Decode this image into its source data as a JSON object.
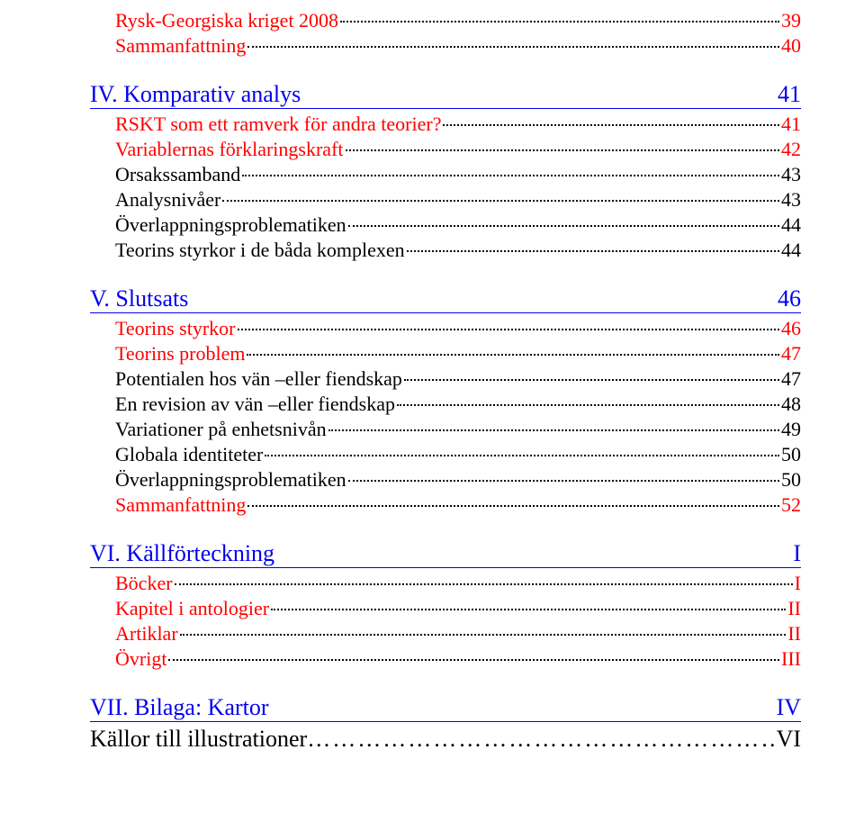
{
  "colors": {
    "background": "#ffffff",
    "link_blue": "#0000ee",
    "link_red": "#ff0000",
    "text": "#000000",
    "dot": "#000000"
  },
  "typography": {
    "font_family": "Times New Roman",
    "entry_fontsize_pt": 17,
    "heading_fontsize_pt": 20
  },
  "pre_entries": [
    {
      "label": "Rysk-Georgiska kriget 2008",
      "page": "39",
      "style": "link-red",
      "indent": 1
    },
    {
      "label": "Sammanfattning",
      "page": "40",
      "style": "link-red",
      "indent": 1
    }
  ],
  "sections": [
    {
      "title": "IV. Komparativ analys",
      "page": "41",
      "entries": [
        {
          "label": "RSKT som ett ramverk för andra teorier?",
          "page": "41",
          "style": "link-red",
          "indent": 1
        },
        {
          "label": "Variablernas förklaringskraft",
          "page": "42",
          "style": "link-red",
          "indent": 1
        },
        {
          "label": "Orsakssamband",
          "page": "43",
          "style": "plain",
          "indent": 1
        },
        {
          "label": "Analysnivåer",
          "page": "43",
          "style": "plain",
          "indent": 1
        },
        {
          "label": "Överlappningsproblematiken",
          "page": "44",
          "style": "plain",
          "indent": 1
        },
        {
          "label": "Teorins styrkor i de båda komplexen",
          "page": "44",
          "style": "plain",
          "indent": 1
        }
      ]
    },
    {
      "title": "V. Slutsats",
      "page": "46",
      "entries": [
        {
          "label": "Teorins styrkor",
          "page": "46",
          "style": "link-red",
          "indent": 1
        },
        {
          "label": "Teorins problem",
          "page": "47",
          "style": "link-red",
          "indent": 1
        },
        {
          "label": "Potentialen hos vän –eller fiendskap",
          "page": "47",
          "style": "plain",
          "indent": 1
        },
        {
          "label": "En revision av vän –eller fiendskap",
          "page": "48",
          "style": "plain",
          "indent": 1
        },
        {
          "label": "Variationer på enhetsnivån",
          "page": "49",
          "style": "plain",
          "indent": 1
        },
        {
          "label": "Globala identiteter",
          "page": "50",
          "style": "plain",
          "indent": 1
        },
        {
          "label": "Överlappningsproblematiken",
          "page": "50",
          "style": "plain",
          "indent": 1
        },
        {
          "label": "Sammanfattning",
          "page": "52",
          "style": "link-red",
          "indent": 1
        }
      ]
    },
    {
      "title": "VI. Källförteckning",
      "page": "I",
      "entries": [
        {
          "label": "Böcker",
          "page": "I",
          "style": "link-red",
          "indent": 1
        },
        {
          "label": "Kapitel i antologier",
          "page": "II",
          "style": "link-red",
          "indent": 1
        },
        {
          "label": "Artiklar",
          "page": "II",
          "style": "link-red",
          "indent": 1
        },
        {
          "label": "Övrigt",
          "page": "III",
          "style": "link-red",
          "indent": 1
        }
      ]
    },
    {
      "title": "VII. Bilaga: Kartor",
      "page": "IV",
      "entries": []
    }
  ],
  "source_line": {
    "label": "Källor till illustrationer",
    "dots": "…………………………………………………",
    "page": "VI"
  }
}
